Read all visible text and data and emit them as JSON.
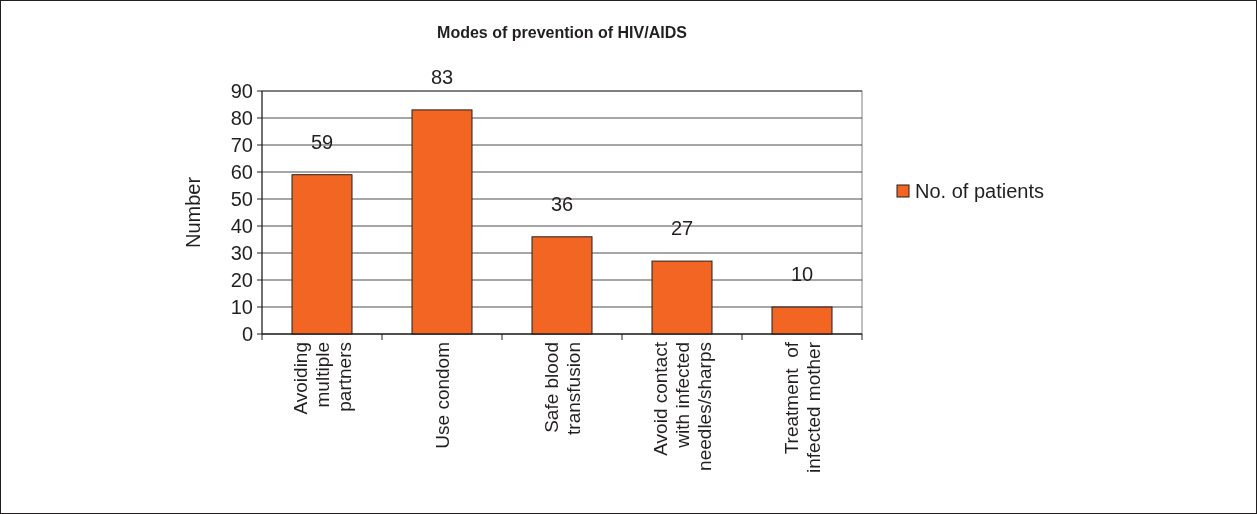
{
  "chart_data": {
    "type": "bar",
    "title": "Modes of prevention of HIV/AIDS",
    "ylabel": "Number",
    "categories": [
      "Avoiding\nmultiple\npartners",
      "Use condom",
      "Safe blood\ntransfusion",
      "Avoid contact\nwith infected\nneedles/sharps",
      "Treatment  of\ninfected mother"
    ],
    "series": [
      {
        "name": "No. of patients",
        "color": "#f26522",
        "values": [
          59,
          83,
          36,
          27,
          10
        ]
      }
    ],
    "ylim": [
      0,
      90
    ],
    "yticks": [
      0,
      10,
      20,
      30,
      40,
      50,
      60,
      70,
      80,
      90
    ],
    "grid": "y",
    "legend": "right",
    "data_labels": true
  }
}
